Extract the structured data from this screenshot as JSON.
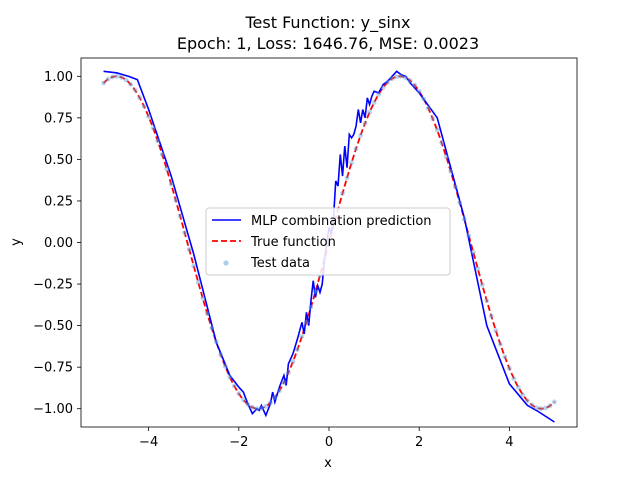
{
  "chart_data": {
    "type": "line",
    "title_line1": "Test Function: y_sinx",
    "title_line2": "Epoch: 1, Loss: 1646.76, MSE: 0.0023",
    "xlabel": "x",
    "ylabel": "y",
    "xlim": [
      -5.5,
      5.5
    ],
    "ylim": [
      -1.11,
      1.11
    ],
    "grid": false,
    "legend_position": "center",
    "x_ticks": [
      {
        "value": -4,
        "label": "−4"
      },
      {
        "value": -2,
        "label": "−2"
      },
      {
        "value": 0,
        "label": "0"
      },
      {
        "value": 2,
        "label": "2"
      },
      {
        "value": 4,
        "label": "4"
      }
    ],
    "y_ticks": [
      {
        "value": -1.0,
        "label": "−1.00"
      },
      {
        "value": -0.75,
        "label": "−0.75"
      },
      {
        "value": -0.5,
        "label": "−0.50"
      },
      {
        "value": -0.25,
        "label": "−0.25"
      },
      {
        "value": 0.0,
        "label": "0.00"
      },
      {
        "value": 0.25,
        "label": "0.25"
      },
      {
        "value": 0.5,
        "label": "0.50"
      },
      {
        "value": 0.75,
        "label": "0.75"
      },
      {
        "value": 1.0,
        "label": "1.00"
      }
    ],
    "series": [
      {
        "name": "MLP combination prediction",
        "kind": "line",
        "color": "#0000ff",
        "x": [
          -5.0,
          -4.7,
          -4.45,
          -4.25,
          -4.0,
          -3.5,
          -3.0,
          -2.5,
          -2.2,
          -2.0,
          -1.9,
          -1.8,
          -1.75,
          -1.7,
          -1.6,
          -1.55,
          -1.5,
          -1.45,
          -1.4,
          -1.3,
          -1.25,
          -1.2,
          -1.1,
          -1.0,
          -0.95,
          -0.9,
          -0.8,
          -0.7,
          -0.6,
          -0.55,
          -0.5,
          -0.45,
          -0.4,
          -0.35,
          -0.3,
          -0.25,
          -0.2,
          -0.15,
          -0.1,
          0.0,
          0.05,
          0.1,
          0.15,
          0.2,
          0.25,
          0.3,
          0.35,
          0.4,
          0.45,
          0.5,
          0.55,
          0.6,
          0.65,
          0.7,
          0.75,
          0.8,
          0.85,
          0.9,
          0.95,
          1.0,
          1.1,
          1.2,
          1.3,
          1.4,
          1.5,
          1.6,
          1.7,
          1.8,
          2.0,
          2.4,
          3.0,
          3.5,
          4.0,
          4.4,
          4.6,
          5.0
        ],
        "y": [
          1.03,
          1.02,
          1.0,
          0.98,
          0.8,
          0.4,
          -0.07,
          -0.6,
          -0.8,
          -0.87,
          -0.9,
          -0.97,
          -1.0,
          -1.03,
          -1.0,
          -1.01,
          -0.98,
          -1.01,
          -1.04,
          -0.97,
          -0.9,
          -0.96,
          -0.87,
          -0.8,
          -0.86,
          -0.73,
          -0.67,
          -0.58,
          -0.48,
          -0.55,
          -0.42,
          -0.5,
          -0.35,
          -0.23,
          -0.33,
          -0.26,
          -0.3,
          -0.25,
          -0.1,
          0.09,
          0.05,
          0.15,
          0.37,
          0.34,
          0.53,
          0.4,
          0.58,
          0.45,
          0.65,
          0.63,
          0.65,
          0.7,
          0.8,
          0.72,
          0.8,
          0.75,
          0.87,
          0.83,
          0.88,
          0.91,
          0.9,
          0.95,
          0.97,
          1.0,
          1.03,
          1.01,
          1.0,
          0.96,
          0.9,
          0.75,
          0.15,
          -0.5,
          -0.85,
          -0.98,
          -1.01,
          -1.08
        ]
      },
      {
        "name": "True function",
        "kind": "dashed",
        "color": "#ff0000",
        "function": "sin",
        "x_range": [
          -5,
          5
        ]
      },
      {
        "name": "Test data",
        "kind": "scatter",
        "color": "#5fa2d8",
        "x": [
          -5.0,
          -4.9,
          -4.8,
          -4.7,
          -4.6,
          -4.5,
          -4.4,
          -4.3,
          -4.2,
          -4.1,
          -4.0,
          -3.9,
          -3.8,
          -3.7,
          -3.6,
          -3.5,
          -3.4,
          -3.3,
          -3.2,
          -3.1,
          -3.0,
          -2.9,
          -2.8,
          -2.7,
          -2.6,
          -2.5,
          -2.4,
          -2.3,
          -2.2,
          -2.1,
          -2.0,
          -1.9,
          -1.8,
          -1.7,
          -1.6,
          -1.5,
          -1.4,
          -1.3,
          -1.2,
          -1.1,
          -1.0,
          -0.9,
          -0.8,
          -0.7,
          -0.6,
          -0.5,
          -0.4,
          -0.3,
          -0.2,
          -0.1,
          0.0,
          0.1,
          0.2,
          0.3,
          0.4,
          0.5,
          0.6,
          0.7,
          0.8,
          0.9,
          1.0,
          1.1,
          1.2,
          1.3,
          1.4,
          1.5,
          1.6,
          1.7,
          1.8,
          1.9,
          2.0,
          2.1,
          2.2,
          2.3,
          2.4,
          2.5,
          2.6,
          2.7,
          2.8,
          2.9,
          3.0,
          3.1,
          3.2,
          3.3,
          3.4,
          3.5,
          3.6,
          3.7,
          3.8,
          3.9,
          4.0,
          4.1,
          4.2,
          4.3,
          4.4,
          4.5,
          4.6,
          4.7,
          4.8,
          4.9,
          5.0
        ]
      }
    ]
  }
}
